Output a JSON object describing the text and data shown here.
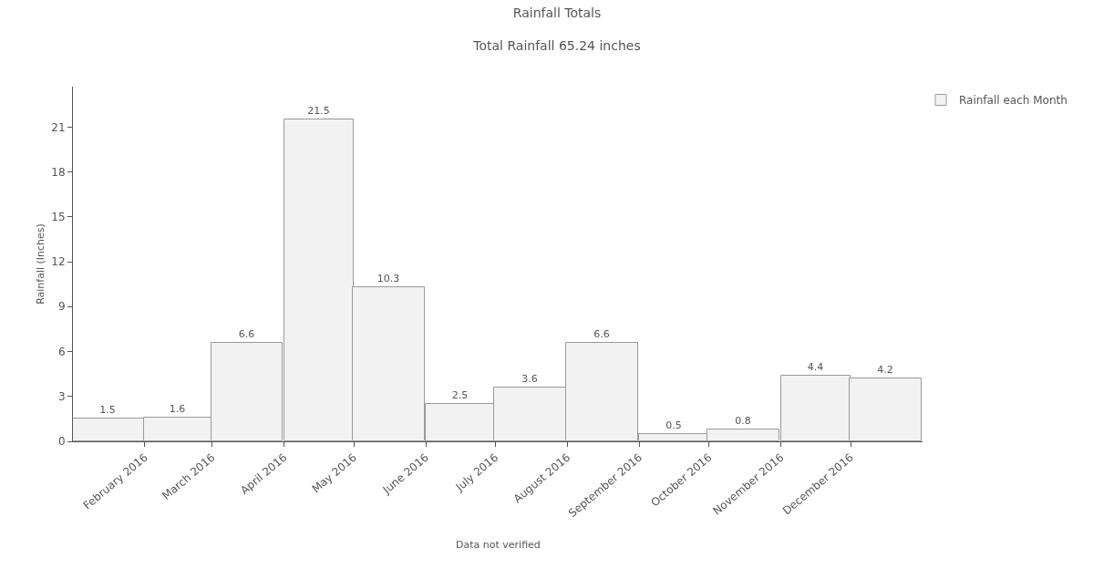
{
  "chart_data": {
    "type": "bar",
    "title": "Rainfall Totals",
    "subtitle": "Total Rainfall 65.24 inches",
    "ylabel": "Rainfall (Inches)",
    "x": [
      "2016-01-16",
      "2016-02-15",
      "2016-03-16",
      "2016-04-16",
      "2016-05-16",
      "2016-06-16",
      "2016-07-16",
      "2016-08-16",
      "2016-09-16",
      "2016-10-16",
      "2016-11-16",
      "2016-12-16"
    ],
    "series": [
      {
        "name": "Rainfall each Month",
        "color": "#f2f2f2",
        "values": [
          1.5,
          1.6,
          6.6,
          21.5,
          10.3,
          2.5,
          3.6,
          6.6,
          0.5,
          0.8,
          4.4,
          4.2
        ]
      }
    ],
    "xlim": [
      "2016-01",
      "2017-01"
    ],
    "xticks": [
      {
        "value": "2016-02",
        "label": "February 2016"
      },
      {
        "value": "2016-03",
        "label": "March 2016"
      },
      {
        "value": "2016-04",
        "label": "April 2016"
      },
      {
        "value": "2016-05",
        "label": "May 2016"
      },
      {
        "value": "2016-06",
        "label": "June 2016"
      },
      {
        "value": "2016-07",
        "label": "July 2016"
      },
      {
        "value": "2016-08",
        "label": "August 2016"
      },
      {
        "value": "2016-09",
        "label": "September 2016"
      },
      {
        "value": "2016-10",
        "label": "October 2016"
      },
      {
        "value": "2016-11",
        "label": "November 2016"
      },
      {
        "value": "2016-12",
        "label": "December 2016"
      }
    ],
    "ylim": [
      0,
      23.7
    ],
    "yticks": [
      0,
      3,
      6,
      9,
      12,
      15,
      18,
      21
    ],
    "grid": false,
    "legend": "top right",
    "data_labels": true,
    "annotations": [
      "Data not verified"
    ]
  }
}
